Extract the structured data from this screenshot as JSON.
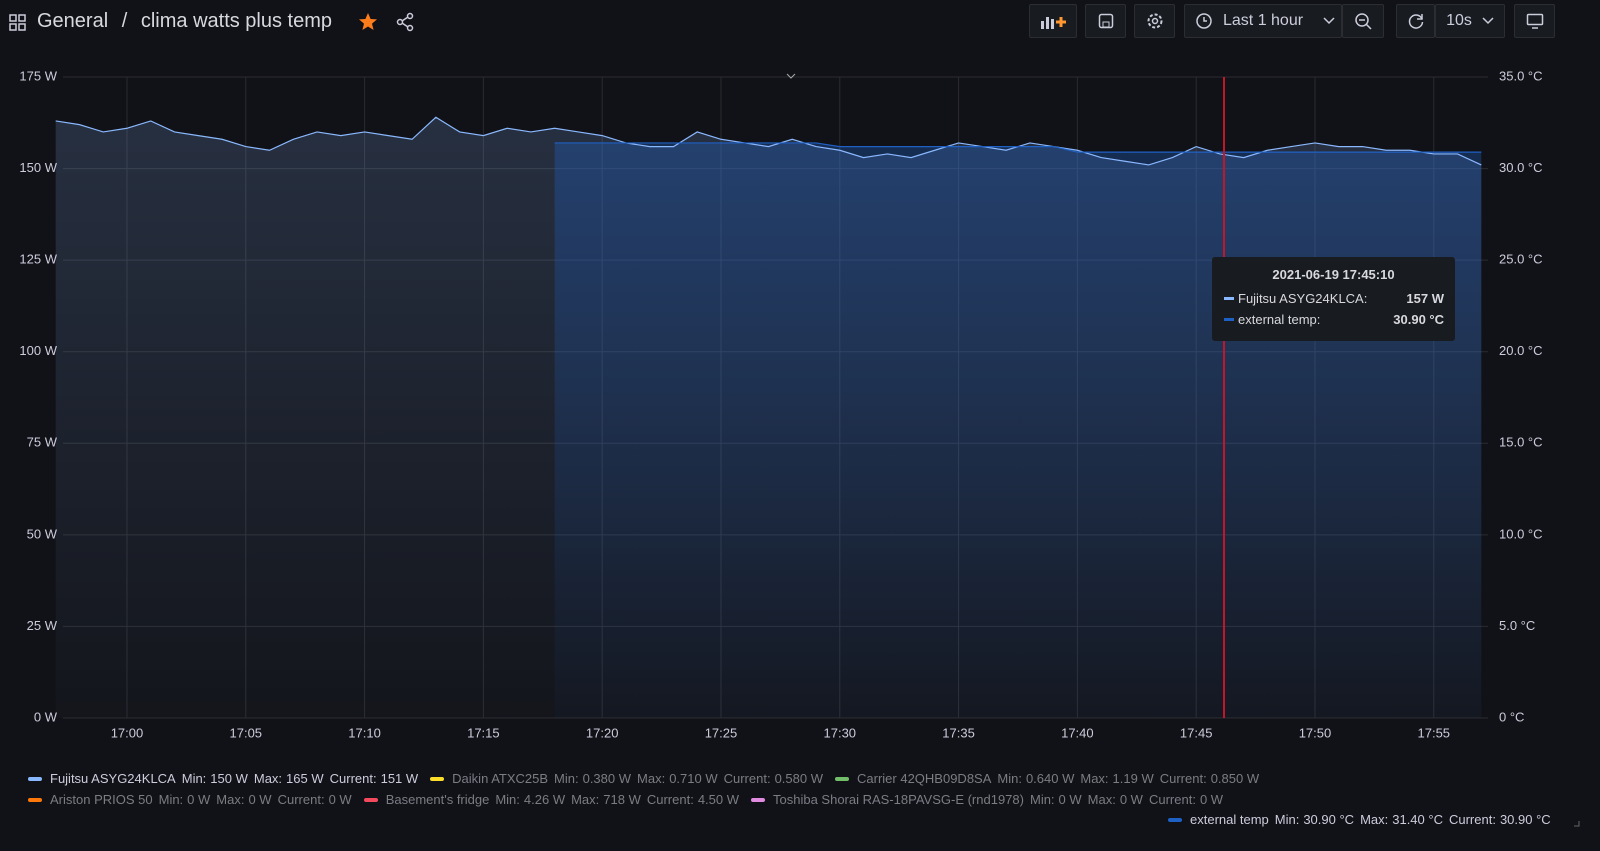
{
  "header": {
    "breadcrumb": [
      "General",
      "clima watts plus temp"
    ],
    "separator": "/",
    "time_range": "Last 1 hour",
    "refresh": "10s"
  },
  "chart_data": {
    "type": "line",
    "x": [
      "16:57",
      "16:58",
      "16:59",
      "17:00",
      "17:01",
      "17:02",
      "17:03",
      "17:04",
      "17:05",
      "17:06",
      "17:07",
      "17:08",
      "17:09",
      "17:10",
      "17:11",
      "17:12",
      "17:13",
      "17:14",
      "17:15",
      "17:16",
      "17:17",
      "17:18",
      "17:19",
      "17:20",
      "17:21",
      "17:22",
      "17:23",
      "17:24",
      "17:25",
      "17:26",
      "17:27",
      "17:28",
      "17:29",
      "17:30",
      "17:31",
      "17:32",
      "17:33",
      "17:34",
      "17:35",
      "17:36",
      "17:37",
      "17:38",
      "17:39",
      "17:40",
      "17:41",
      "17:42",
      "17:43",
      "17:44",
      "17:45",
      "17:46",
      "17:47",
      "17:48",
      "17:49",
      "17:50",
      "17:51",
      "17:52",
      "17:53",
      "17:54",
      "17:55",
      "17:56",
      "17:57"
    ],
    "xticks": [
      "17:00",
      "17:05",
      "17:10",
      "17:15",
      "17:20",
      "17:25",
      "17:30",
      "17:35",
      "17:40",
      "17:45",
      "17:50",
      "17:55"
    ],
    "ylim": [
      0,
      175
    ],
    "yticks": [
      {
        "value": 0,
        "label": "0 W"
      },
      {
        "value": 25,
        "label": "25 W"
      },
      {
        "value": 50,
        "label": "50 W"
      },
      {
        "value": 75,
        "label": "75 W"
      },
      {
        "value": 100,
        "label": "100 W"
      },
      {
        "value": 125,
        "label": "125 W"
      },
      {
        "value": 150,
        "label": "150 W"
      },
      {
        "value": 175,
        "label": "175 W"
      }
    ],
    "y2lim": [
      0,
      35
    ],
    "y2ticks": [
      {
        "value": 0,
        "label": "0 °C"
      },
      {
        "value": 5,
        "label": "5.0 °C"
      },
      {
        "value": 10,
        "label": "10.0 °C"
      },
      {
        "value": 15,
        "label": "15.0 °C"
      },
      {
        "value": 20,
        "label": "20.0 °C"
      },
      {
        "value": 25,
        "label": "25.0 °C"
      },
      {
        "value": 30,
        "label": "30.0 °C"
      },
      {
        "value": 35,
        "label": "35.0 °C"
      }
    ],
    "grid": true,
    "stat_labels": [
      "Min:",
      "Max:",
      "Current:"
    ],
    "series": [
      {
        "name": "Fujitsu ASYG24KLCA",
        "color": "#8ab8ff",
        "stats": [
          "150 W",
          "165 W",
          "151 W"
        ],
        "values": [
          163,
          162,
          160,
          161,
          163,
          160,
          159,
          158,
          156,
          155,
          158,
          160,
          159,
          160,
          159,
          158,
          164,
          160,
          159,
          161,
          160,
          161,
          160,
          159,
          157,
          156,
          156,
          160,
          158,
          157,
          156,
          158,
          156,
          155,
          153,
          154,
          153,
          155,
          157,
          156,
          155,
          157,
          156,
          155,
          153,
          152,
          151,
          153,
          156,
          154,
          153,
          155,
          156,
          157,
          156,
          156,
          155,
          155,
          154,
          154,
          151
        ]
      },
      {
        "name": "external temp",
        "color": "#1f60c4",
        "axis": "y2",
        "stats": [
          "30.90 °C",
          "31.40 °C",
          "30.90 °C"
        ],
        "values": [
          null,
          null,
          null,
          null,
          null,
          null,
          null,
          null,
          null,
          null,
          null,
          null,
          null,
          null,
          null,
          null,
          null,
          null,
          null,
          null,
          null,
          31.4,
          31.4,
          31.4,
          31.4,
          31.4,
          31.4,
          31.4,
          31.4,
          31.4,
          31.4,
          31.4,
          31.4,
          31.2,
          31.2,
          31.2,
          31.2,
          31.2,
          31.2,
          31.2,
          31.2,
          31.2,
          31.2,
          30.9,
          30.9,
          30.9,
          30.9,
          30.9,
          30.9,
          30.9,
          30.9,
          30.9,
          30.9,
          30.9,
          30.9,
          30.9,
          30.9,
          30.9,
          30.9,
          30.9,
          30.9
        ]
      }
    ],
    "hidden_series": [
      {
        "name": "Daikin ATXC25B",
        "color": "#fade2a",
        "stats": [
          "0.380 W",
          "0.710 W",
          "0.580 W"
        ]
      },
      {
        "name": "Carrier 42QHB09D8SA",
        "color": "#73bf69",
        "stats": [
          "0.640 W",
          "1.19 W",
          "0.850 W"
        ]
      },
      {
        "name": "Ariston PRIOS 50",
        "color": "#ff780a",
        "stats": [
          "0 W",
          "0 W",
          "0 W"
        ]
      },
      {
        "name": "Basement's fridge",
        "color": "#f2495c",
        "stats": [
          "4.26 W",
          "718 W",
          "4.50 W"
        ]
      },
      {
        "name": "Toshiba Shorai RAS-18PAVSG-E (rnd1978)",
        "color": "#e08ae0",
        "stats": [
          "0 W",
          "0 W",
          "0 W"
        ]
      }
    ],
    "tooltip": {
      "title": "2021-06-19 17:45:10",
      "rows": [
        {
          "label": "Fujitsu ASYG24KLCA:",
          "value": "157 W"
        },
        {
          "label": "external temp:",
          "value": "30.90 °C"
        }
      ]
    }
  }
}
